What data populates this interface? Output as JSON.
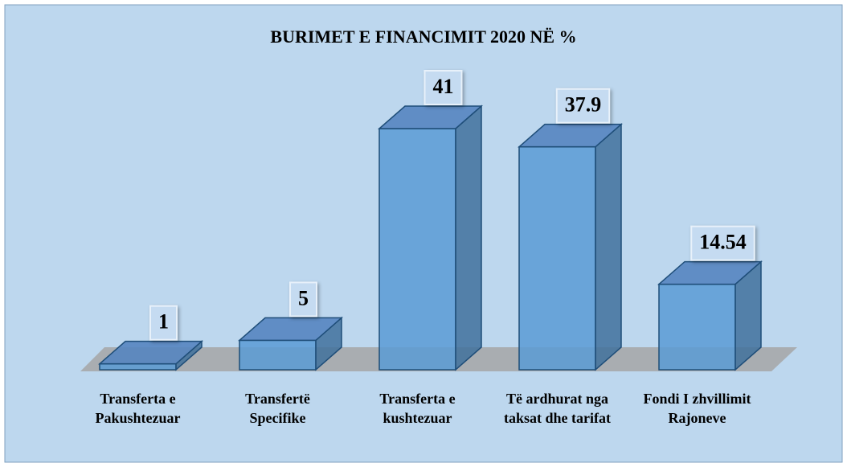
{
  "chart_data": {
    "type": "bar",
    "title": "BURIMET E FINANCIMIT 2020 NË %",
    "categories": [
      "Transferta e Pakushtezuar",
      "Transfertë Specifike",
      "Transferta e kushtezuar",
      "Të ardhurat nga taksat dhe tarifat",
      "Fondi I zhvillimit Rajoneve"
    ],
    "values": [
      1,
      5,
      41,
      37.9,
      14.54
    ],
    "color": "#5b9bd5"
  }
}
